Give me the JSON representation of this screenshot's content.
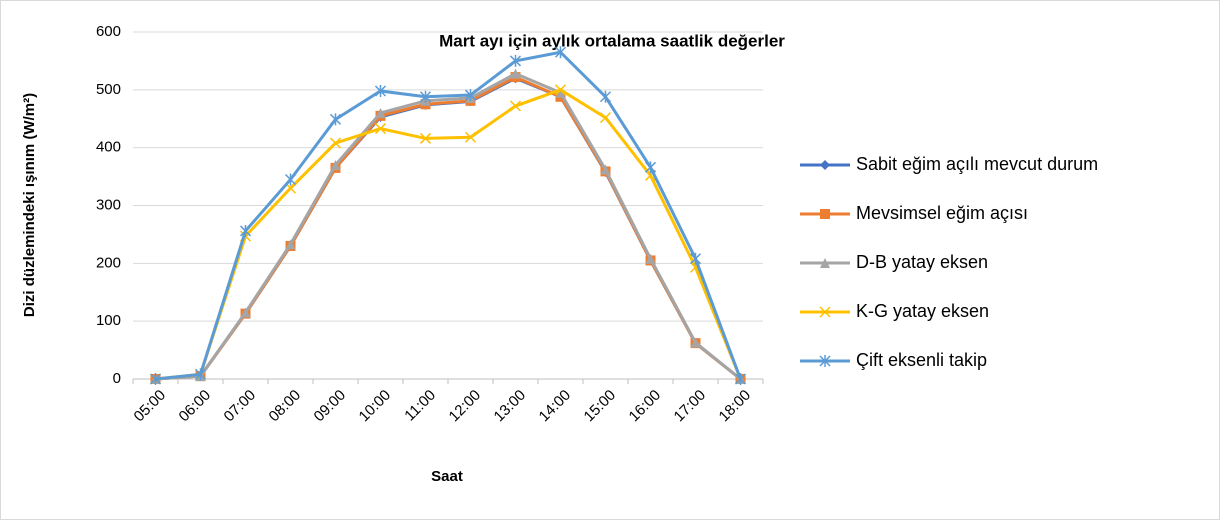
{
  "chart_data": {
    "type": "line",
    "title": "Mart ayı için aylık ortalama saatlik değerler",
    "x_label": "Saat",
    "y_label": "Dizi düzlemindeki ışınım (W/m²)",
    "categories": [
      "05:00",
      "06:00",
      "07:00",
      "08:00",
      "09:00",
      "10:00",
      "11:00",
      "12:00",
      "13:00",
      "14:00",
      "15:00",
      "16:00",
      "17:00",
      "18:00"
    ],
    "series": [
      {
        "name": "Sabit eğim açılı mevcut durum",
        "color": "#4472c4",
        "marker": "diamond",
        "values": [
          0,
          5,
          113,
          230,
          365,
          453,
          474,
          480,
          520,
          488,
          358,
          205,
          62,
          0
        ]
      },
      {
        "name": "Mevsimsel eğim açısı",
        "color": "#ed7d31",
        "marker": "square",
        "values": [
          0,
          5,
          113,
          230,
          365,
          455,
          475,
          481,
          522,
          488,
          359,
          205,
          62,
          0
        ]
      },
      {
        "name": "D-B yatay eksen",
        "color": "#a5a5a5",
        "marker": "triangle",
        "values": [
          0,
          5,
          115,
          233,
          370,
          460,
          481,
          486,
          528,
          495,
          362,
          208,
          63,
          0
        ]
      },
      {
        "name": "K-G yatay eksen",
        "color": "#ffc000",
        "marker": "x",
        "values": [
          0,
          8,
          247,
          330,
          408,
          433,
          416,
          418,
          472,
          500,
          452,
          352,
          193,
          0
        ]
      },
      {
        "name": "Çift eksenli takip",
        "color": "#5b9bd5",
        "marker": "star",
        "values": [
          0,
          8,
          256,
          345,
          449,
          498,
          488,
          491,
          550,
          565,
          488,
          366,
          208,
          0
        ]
      }
    ],
    "ylim": [
      0,
      600
    ],
    "yticks": [
      0,
      100,
      200,
      300,
      400,
      500,
      600
    ],
    "grid": true,
    "legend": "right"
  }
}
